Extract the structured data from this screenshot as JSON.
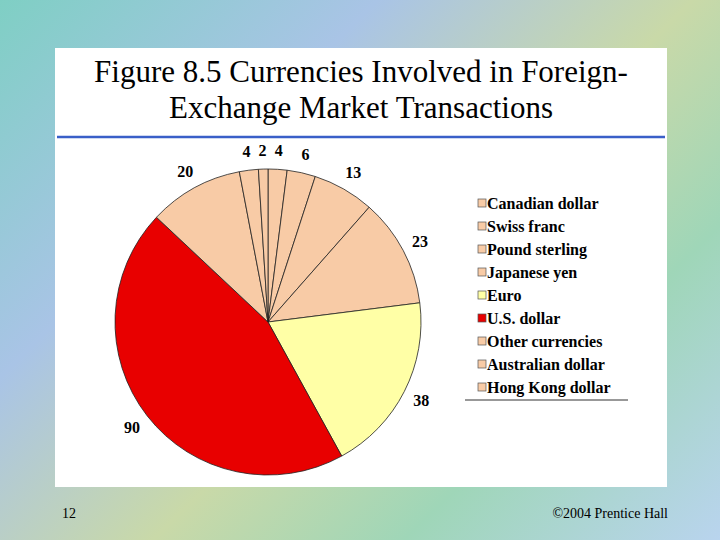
{
  "chart_data": {
    "type": "pie",
    "title": "Figure 8.5 Currencies Involved in Foreign-Exchange Market Transactions",
    "categories": [
      "Canadian dollar",
      "Swiss franc",
      "Pound sterling",
      "Japanese yen",
      "Euro",
      "U.S. dollar",
      "Other currencies",
      "Australian dollar",
      "Hong Kong dollar"
    ],
    "values": [
      4,
      6,
      13,
      23,
      38,
      90,
      20,
      4,
      2
    ],
    "colors": [
      "#f8cba6",
      "#f8cba6",
      "#f8cba6",
      "#f8cba6",
      "#ffffa6",
      "#e80000",
      "#f8cba6",
      "#f8cba6",
      "#f8cba6"
    ],
    "data_labels": true,
    "legend": "right"
  },
  "slide": {
    "page_number": "12",
    "footer": "©2004 Prentice Hall"
  }
}
